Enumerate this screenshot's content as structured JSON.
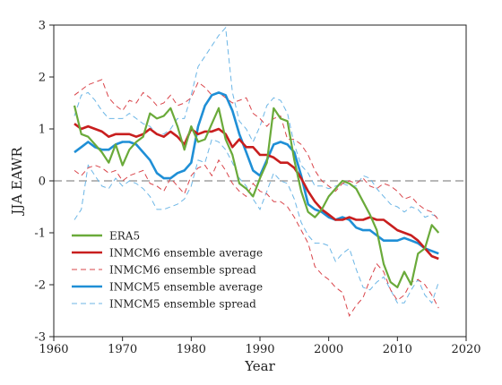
{
  "chart_data": {
    "type": "line",
    "title": "",
    "xlabel": "Year",
    "ylabel": "JJA EAWR",
    "xlim": [
      1960,
      2020
    ],
    "ylim": [
      -3,
      3
    ],
    "x_ticks": [
      1960,
      1970,
      1980,
      1990,
      2000,
      2010,
      2020
    ],
    "y_ticks": [
      -3,
      -2,
      -1,
      0,
      1,
      2,
      3
    ],
    "grid": false,
    "legend_position": "lower-left",
    "zero_line": {
      "y": 0,
      "color": "#a0a0a0",
      "style": "dashed"
    },
    "series": [
      {
        "name": "ERA5",
        "color": "#6aaa3a",
        "style": "solid",
        "x": [
          1963,
          1964,
          1965,
          1966,
          1967,
          1968,
          1969,
          1970,
          1971,
          1972,
          1973,
          1974,
          1975,
          1976,
          1977,
          1978,
          1979,
          1980,
          1981,
          1982,
          1983,
          1984,
          1985,
          1986,
          1987,
          1988,
          1989,
          1990,
          1991,
          1992,
          1993,
          1994,
          1995,
          1996,
          1997,
          1998,
          1999,
          2000,
          2001,
          2002,
          2003,
          2004,
          2005,
          2006,
          2007,
          2008,
          2009,
          2010,
          2011,
          2012,
          2013,
          2014,
          2015,
          2016
        ],
        "values": [
          1.45,
          0.9,
          0.85,
          0.7,
          0.55,
          0.35,
          0.7,
          0.3,
          0.6,
          0.75,
          0.85,
          1.3,
          1.2,
          1.25,
          1.4,
          1.05,
          0.6,
          1.05,
          0.75,
          0.8,
          1.1,
          1.4,
          0.8,
          0.5,
          -0.05,
          -0.15,
          -0.3,
          0.05,
          0.35,
          1.4,
          1.2,
          1.15,
          0.4,
          -0.2,
          -0.6,
          -0.7,
          -0.55,
          -0.3,
          -0.15,
          0.0,
          -0.05,
          -0.15,
          -0.4,
          -0.65,
          -0.95,
          -1.6,
          -1.95,
          -2.05,
          -1.75,
          -2.0,
          -1.4,
          -1.3,
          -0.85,
          -1.0
        ]
      },
      {
        "name": "INMCM6 ensemble average",
        "color": "#c81e1e",
        "style": "solid",
        "x": [
          1963,
          1964,
          1965,
          1966,
          1967,
          1968,
          1969,
          1970,
          1971,
          1972,
          1973,
          1974,
          1975,
          1976,
          1977,
          1978,
          1979,
          1980,
          1981,
          1982,
          1983,
          1984,
          1985,
          1986,
          1987,
          1988,
          1989,
          1990,
          1991,
          1992,
          1993,
          1994,
          1995,
          1996,
          1997,
          1998,
          1999,
          2000,
          2001,
          2002,
          2003,
          2004,
          2005,
          2006,
          2007,
          2008,
          2009,
          2010,
          2011,
          2012,
          2013,
          2014,
          2015,
          2016
        ],
        "values": [
          1.1,
          1.0,
          1.05,
          1.0,
          0.95,
          0.85,
          0.9,
          0.9,
          0.9,
          0.85,
          0.9,
          1.0,
          0.9,
          0.85,
          0.95,
          0.85,
          0.7,
          1.0,
          0.9,
          0.95,
          0.95,
          1.0,
          0.9,
          0.65,
          0.8,
          0.65,
          0.65,
          0.5,
          0.5,
          0.45,
          0.35,
          0.35,
          0.25,
          0.05,
          -0.2,
          -0.4,
          -0.55,
          -0.65,
          -0.75,
          -0.75,
          -0.7,
          -0.75,
          -0.75,
          -0.7,
          -0.75,
          -0.75,
          -0.85,
          -0.95,
          -1.0,
          -1.05,
          -1.15,
          -1.3,
          -1.45,
          -1.5
        ]
      },
      {
        "name": "INMCM6 ensemble spread",
        "color": "#d9444a",
        "style": "dashed",
        "upper": {
          "x": [
            1963,
            1964,
            1965,
            1966,
            1967,
            1968,
            1969,
            1970,
            1971,
            1972,
            1973,
            1974,
            1975,
            1976,
            1977,
            1978,
            1979,
            1980,
            1981,
            1982,
            1983,
            1984,
            1985,
            1986,
            1987,
            1988,
            1989,
            1990,
            1991,
            1992,
            1993,
            1994,
            1995,
            1996,
            1997,
            1998,
            1999,
            2000,
            2001,
            2002,
            2003,
            2004,
            2005,
            2006,
            2007,
            2008,
            2009,
            2010,
            2011,
            2012,
            2013,
            2014,
            2015,
            2016
          ],
          "values": [
            1.65,
            1.75,
            1.85,
            1.9,
            1.95,
            1.6,
            1.45,
            1.35,
            1.55,
            1.5,
            1.7,
            1.6,
            1.45,
            1.5,
            1.65,
            1.45,
            1.5,
            1.6,
            1.9,
            1.8,
            1.65,
            1.7,
            1.6,
            1.5,
            1.55,
            1.6,
            1.3,
            1.2,
            1.05,
            1.2,
            1.25,
            0.8,
            0.8,
            0.7,
            0.5,
            0.2,
            0.0,
            -0.1,
            -0.2,
            -0.05,
            0.0,
            -0.05,
            0.05,
            -0.1,
            -0.15,
            -0.05,
            -0.1,
            -0.2,
            -0.35,
            -0.3,
            -0.45,
            -0.55,
            -0.6,
            -0.75
          ]
        },
        "lower": {
          "x": [
            1963,
            1964,
            1965,
            1966,
            1967,
            1968,
            1969,
            1970,
            1971,
            1972,
            1973,
            1974,
            1975,
            1976,
            1977,
            1978,
            1979,
            1980,
            1981,
            1982,
            1983,
            1984,
            1985,
            1986,
            1987,
            1988,
            1989,
            1990,
            1991,
            1992,
            1993,
            1994,
            1995,
            1996,
            1997,
            1998,
            1999,
            2000,
            2001,
            2002,
            2003,
            2004,
            2005,
            2006,
            2007,
            2008,
            2009,
            2010,
            2011,
            2012,
            2013,
            2014,
            2015,
            2016
          ],
          "values": [
            0.2,
            0.1,
            0.25,
            0.3,
            0.25,
            0.15,
            0.2,
            0.0,
            0.1,
            0.15,
            0.2,
            -0.05,
            -0.1,
            -0.2,
            0.05,
            -0.1,
            -0.25,
            0.1,
            0.25,
            0.3,
            0.1,
            0.4,
            0.2,
            -0.05,
            -0.2,
            -0.3,
            -0.05,
            -0.2,
            -0.25,
            -0.4,
            -0.4,
            -0.5,
            -0.7,
            -0.95,
            -1.2,
            -1.65,
            -1.8,
            -1.9,
            -2.05,
            -2.15,
            -2.6,
            -2.4,
            -2.25,
            -1.9,
            -1.6,
            -1.75,
            -2.1,
            -2.3,
            -2.2,
            -1.95,
            -1.9,
            -2.0,
            -2.2,
            -2.45
          ]
        }
      },
      {
        "name": "INMCM5 ensemble average",
        "color": "#1f8fd6",
        "style": "solid",
        "x": [
          1963,
          1964,
          1965,
          1966,
          1967,
          1968,
          1969,
          1970,
          1971,
          1972,
          1973,
          1974,
          1975,
          1976,
          1977,
          1978,
          1979,
          1980,
          1981,
          1982,
          1983,
          1984,
          1985,
          1986,
          1987,
          1988,
          1989,
          1990,
          1991,
          1992,
          1993,
          1994,
          1995,
          1996,
          1997,
          1998,
          1999,
          2000,
          2001,
          2002,
          2003,
          2004,
          2005,
          2006,
          2007,
          2008,
          2009,
          2010,
          2011,
          2012,
          2013,
          2014,
          2015,
          2016
        ],
        "values": [
          0.55,
          0.65,
          0.75,
          0.65,
          0.6,
          0.6,
          0.7,
          0.75,
          0.75,
          0.7,
          0.55,
          0.4,
          0.15,
          0.05,
          0.05,
          0.15,
          0.2,
          0.35,
          1.05,
          1.45,
          1.65,
          1.7,
          1.65,
          1.35,
          0.9,
          0.55,
          0.2,
          0.1,
          0.4,
          0.7,
          0.75,
          0.7,
          0.55,
          0.1,
          -0.45,
          -0.55,
          -0.6,
          -0.7,
          -0.75,
          -0.7,
          -0.75,
          -0.9,
          -0.95,
          -0.95,
          -1.05,
          -1.15,
          -1.15,
          -1.15,
          -1.1,
          -1.15,
          -1.2,
          -1.3,
          -1.35,
          -1.4
        ]
      },
      {
        "name": "INMCM5 ensemble spread",
        "color": "#6cb6e6",
        "style": "dashed",
        "upper": {
          "x": [
            1963,
            1964,
            1965,
            1966,
            1967,
            1968,
            1969,
            1970,
            1971,
            1972,
            1973,
            1974,
            1975,
            1976,
            1977,
            1978,
            1979,
            1980,
            1981,
            1982,
            1983,
            1984,
            1985,
            1986,
            1987,
            1988,
            1989,
            1990,
            1991,
            1992,
            1993,
            1994,
            1995,
            1996,
            1997,
            1998,
            1999,
            2000,
            2001,
            2002,
            2003,
            2004,
            2005,
            2006,
            2007,
            2008,
            2009,
            2010,
            2011,
            2012,
            2013,
            2014,
            2015,
            2016
          ],
          "values": [
            1.25,
            1.65,
            1.7,
            1.55,
            1.35,
            1.2,
            1.2,
            1.2,
            1.3,
            1.2,
            1.1,
            1.05,
            0.9,
            0.9,
            1.0,
            1.2,
            1.2,
            1.65,
            2.2,
            2.4,
            2.6,
            2.8,
            2.95,
            1.7,
            1.15,
            1.0,
            0.75,
            1.05,
            1.45,
            1.6,
            1.55,
            1.3,
            0.7,
            0.3,
            0.15,
            -0.1,
            -0.1,
            -0.15,
            -0.1,
            -0.05,
            -0.1,
            -0.1,
            0.1,
            0.05,
            -0.15,
            -0.3,
            -0.45,
            -0.5,
            -0.6,
            -0.5,
            -0.55,
            -0.7,
            -0.65,
            -0.7
          ]
        },
        "lower": {
          "x": [
            1963,
            1964,
            1965,
            1966,
            1967,
            1968,
            1969,
            1970,
            1971,
            1972,
            1973,
            1974,
            1975,
            1976,
            1977,
            1978,
            1979,
            1980,
            1981,
            1982,
            1983,
            1984,
            1985,
            1986,
            1987,
            1988,
            1989,
            1990,
            1991,
            1992,
            1993,
            1994,
            1995,
            1996,
            1997,
            1998,
            1999,
            2000,
            2001,
            2002,
            2003,
            2004,
            2005,
            2006,
            2007,
            2008,
            2009,
            2010,
            2011,
            2012,
            2013,
            2014,
            2015,
            2016
          ],
          "values": [
            -0.75,
            -0.55,
            0.3,
            0.1,
            -0.1,
            -0.15,
            0.05,
            -0.1,
            0.0,
            -0.05,
            -0.15,
            -0.3,
            -0.55,
            -0.55,
            -0.5,
            -0.45,
            -0.35,
            -0.1,
            0.4,
            0.35,
            0.8,
            0.75,
            0.6,
            0.35,
            0.05,
            -0.1,
            -0.35,
            -0.55,
            -0.2,
            0.15,
            0.0,
            -0.05,
            -0.35,
            -0.8,
            -1.05,
            -1.2,
            -1.2,
            -1.25,
            -1.55,
            -1.4,
            -1.3,
            -1.7,
            -2.05,
            -2.1,
            -1.95,
            -1.85,
            -2.1,
            -2.35,
            -2.35,
            -2.1,
            -1.9,
            -2.2,
            -2.35,
            -1.95
          ]
        }
      }
    ]
  }
}
